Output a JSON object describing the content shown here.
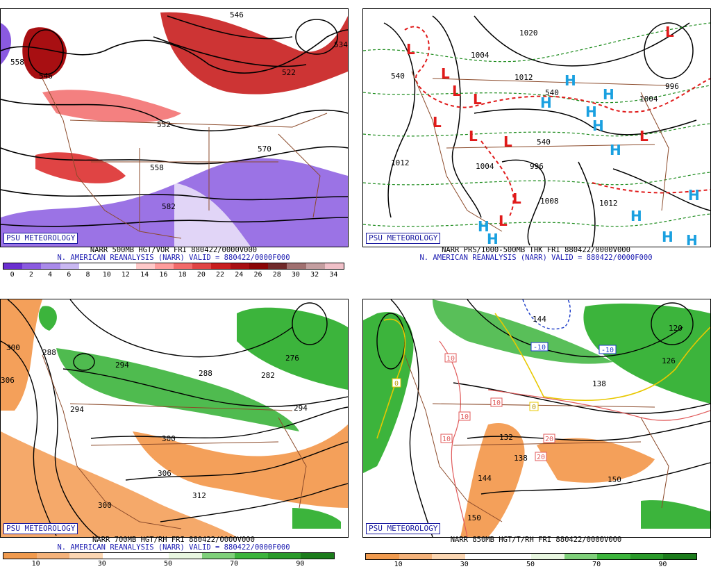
{
  "panels": {
    "p1": {
      "logo": "PSU METEOROLOGY",
      "caption1": "NARR 500MB HGT/VOR FRI 880422/0000V000",
      "caption2": "N. AMERICAN REANALYSIS (NARR) VALID = 880422/0000F000",
      "colorbar_ticks": [
        "0",
        "2",
        "4",
        "6",
        "8",
        "10",
        "12",
        "14",
        "16",
        "18",
        "20",
        "22",
        "24",
        "26",
        "28",
        "30",
        "32",
        "34"
      ],
      "colorbar_colors": [
        "#6a2fd0",
        "#8a5ae0",
        "#a98aea",
        "#c9b8f2",
        "#ffffff",
        "#ffffff",
        "#ffffff",
        "#ffc9c9",
        "#ff9c9c",
        "#f26a6a",
        "#e04444",
        "#c81e1e",
        "#a80f12",
        "#8a0606",
        "#702a2a",
        "#a07070",
        "#c49ea0",
        "#f0c0c8"
      ],
      "contour_labels": [
        "558",
        "546",
        "534",
        "522",
        "552",
        "558",
        "570",
        "582",
        "546"
      ]
    },
    "p2": {
      "logo": "PSU METEOROLOGY",
      "caption1": "NARR PRS/1000-500MB THK FRI 880422/0000V000",
      "caption2": "N. AMERICAN REANALYSIS (NARR) VALID = 880422/0000F000",
      "contour_labels": [
        "1020",
        "1004",
        "1012",
        "540",
        "996",
        "1004",
        "1012",
        "996",
        "1004",
        "1008",
        "1012",
        "540",
        "540"
      ],
      "pressure_centers": {
        "low": "L",
        "high": "H"
      }
    },
    "p3": {
      "logo": "PSU METEOROLOGY",
      "caption1": "NARR 700MB HGT/RH FRI 880422/0000V000",
      "caption2": "N. AMERICAN REANALYSIS (NARR) VALID = 880422/0000F000",
      "colorbar_ticks": [
        "10",
        "30",
        "50",
        "70",
        "90"
      ],
      "colorbar_colors": [
        "#f09a4e",
        "#f4b27a",
        "#fbd6b2",
        "#ffffff",
        "#ffffff",
        "#e8f6e0",
        "#7fd07a",
        "#3cb43c",
        "#2a9a2a",
        "#1c7c1c"
      ],
      "contour_labels": [
        "300",
        "288",
        "294",
        "288",
        "282",
        "276",
        "294",
        "294",
        "300",
        "306",
        "312",
        "306",
        "300"
      ]
    },
    "p4": {
      "logo": "PSU METEOROLOGY",
      "caption1": "NARR 850MB HGT/T/RH FRI 880422/0000V000",
      "colorbar_ticks": [
        "10",
        "30",
        "50",
        "70",
        "90"
      ],
      "colorbar_colors": [
        "#f09a4e",
        "#f4b27a",
        "#fbd6b2",
        "#ffffff",
        "#ffffff",
        "#e8f6e0",
        "#7fd07a",
        "#3cb43c",
        "#2a9a2a",
        "#1c7c1c"
      ],
      "contour_labels": [
        "144",
        "126",
        "138",
        "132",
        "138",
        "144",
        "150",
        "150",
        "120"
      ],
      "temp_labels": [
        "-10",
        "-10",
        "10",
        "10",
        "10",
        "10",
        "20",
        "20",
        "0",
        "0"
      ]
    }
  },
  "colors": {
    "vort_pos": "#d63a3a",
    "vort_neg": "#8a5ae0",
    "rh_moist": "#3cb43c",
    "rh_dry": "#f4a05a",
    "border": "#8b4a2a",
    "high": "#1aa0e0",
    "low": "#e01a1a"
  }
}
